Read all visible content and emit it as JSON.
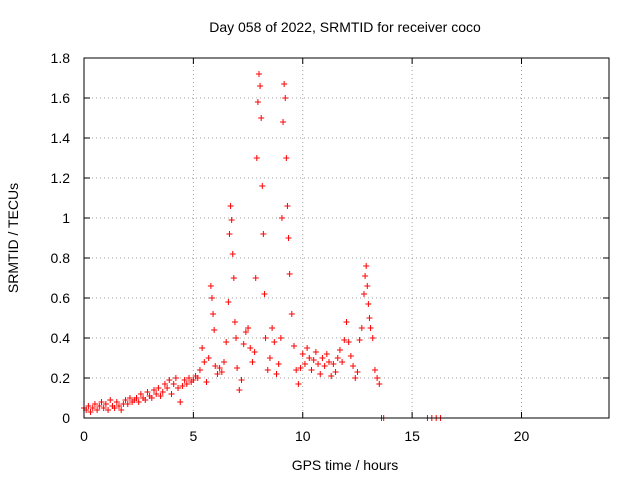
{
  "chart_data": {
    "type": "scatter",
    "title": "Day 058 of 2022, SRMTID for receiver coco",
    "xlabel": "GPS time / hours",
    "ylabel": "SRMTID / TECUs",
    "xlim": [
      0,
      24
    ],
    "ylim": [
      0,
      1.8
    ],
    "xticks": [
      0,
      5,
      10,
      15,
      20
    ],
    "xtick_labels": [
      "0",
      "5",
      "10",
      "15",
      "20"
    ],
    "yticks": [
      0,
      0.2,
      0.4,
      0.6,
      0.8,
      1.0,
      1.2,
      1.4,
      1.6,
      1.8
    ],
    "ytick_labels": [
      "0",
      "0.2",
      "0.4",
      "0.6",
      "0.8",
      "1",
      "1.2",
      "1.4",
      "1.6",
      "1.8"
    ],
    "grid": true,
    "marker": "+",
    "color": "#ff0000",
    "series": [
      {
        "name": "SRMTID",
        "points": [
          [
            0.0,
            0.05
          ],
          [
            0.1,
            0.04
          ],
          [
            0.2,
            0.06
          ],
          [
            0.3,
            0.03
          ],
          [
            0.4,
            0.05
          ],
          [
            0.5,
            0.07
          ],
          [
            0.6,
            0.04
          ],
          [
            0.7,
            0.06
          ],
          [
            0.8,
            0.08
          ],
          [
            0.9,
            0.05
          ],
          [
            1.0,
            0.07
          ],
          [
            1.1,
            0.04
          ],
          [
            1.2,
            0.09
          ],
          [
            1.3,
            0.06
          ],
          [
            1.4,
            0.05
          ],
          [
            1.5,
            0.08
          ],
          [
            1.6,
            0.06
          ],
          [
            1.7,
            0.04
          ],
          [
            1.8,
            0.07
          ],
          [
            1.9,
            0.09
          ],
          [
            2.0,
            0.07
          ],
          [
            2.1,
            0.1
          ],
          [
            2.2,
            0.08
          ],
          [
            2.3,
            0.09
          ],
          [
            2.4,
            0.1
          ],
          [
            2.5,
            0.08
          ],
          [
            2.6,
            0.12
          ],
          [
            2.7,
            0.1
          ],
          [
            2.8,
            0.09
          ],
          [
            2.9,
            0.13
          ],
          [
            3.0,
            0.11
          ],
          [
            3.1,
            0.1
          ],
          [
            3.2,
            0.14
          ],
          [
            3.3,
            0.12
          ],
          [
            3.4,
            0.15
          ],
          [
            3.5,
            0.11
          ],
          [
            3.6,
            0.13
          ],
          [
            3.7,
            0.17
          ],
          [
            3.8,
            0.15
          ],
          [
            3.9,
            0.19
          ],
          [
            4.0,
            0.12
          ],
          [
            4.1,
            0.17
          ],
          [
            4.2,
            0.2
          ],
          [
            4.3,
            0.15
          ],
          [
            4.4,
            0.08
          ],
          [
            4.5,
            0.16
          ],
          [
            4.6,
            0.19
          ],
          [
            4.7,
            0.17
          ],
          [
            4.8,
            0.2
          ],
          [
            4.9,
            0.18
          ],
          [
            5.0,
            0.19
          ],
          [
            5.1,
            0.21
          ],
          [
            5.2,
            0.2
          ],
          [
            5.3,
            0.24
          ],
          [
            5.4,
            0.35
          ],
          [
            5.5,
            0.28
          ],
          [
            5.6,
            0.18
          ],
          [
            5.7,
            0.3
          ],
          [
            5.8,
            0.66
          ],
          [
            5.85,
            0.6
          ],
          [
            5.9,
            0.52
          ],
          [
            5.95,
            0.44
          ],
          [
            6.0,
            0.26
          ],
          [
            6.1,
            0.22
          ],
          [
            6.2,
            0.25
          ],
          [
            6.3,
            0.23
          ],
          [
            6.4,
            0.28
          ],
          [
            6.5,
            0.38
          ],
          [
            6.6,
            0.58
          ],
          [
            6.65,
            0.92
          ],
          [
            6.7,
            1.06
          ],
          [
            6.75,
            0.99
          ],
          [
            6.8,
            0.82
          ],
          [
            6.85,
            0.7
          ],
          [
            6.9,
            0.48
          ],
          [
            6.95,
            0.4
          ],
          [
            7.0,
            0.25
          ],
          [
            7.1,
            0.14
          ],
          [
            7.2,
            0.19
          ],
          [
            7.3,
            0.37
          ],
          [
            7.4,
            0.43
          ],
          [
            7.5,
            0.45
          ],
          [
            7.6,
            0.35
          ],
          [
            7.7,
            0.28
          ],
          [
            7.8,
            0.33
          ],
          [
            7.85,
            0.7
          ],
          [
            7.9,
            1.3
          ],
          [
            7.95,
            1.58
          ],
          [
            8.0,
            1.72
          ],
          [
            8.05,
            1.66
          ],
          [
            8.1,
            1.5
          ],
          [
            8.15,
            1.16
          ],
          [
            8.2,
            0.92
          ],
          [
            8.25,
            0.62
          ],
          [
            8.3,
            0.4
          ],
          [
            8.4,
            0.24
          ],
          [
            8.5,
            0.3
          ],
          [
            8.6,
            0.45
          ],
          [
            8.7,
            0.38
          ],
          [
            8.8,
            0.22
          ],
          [
            8.9,
            0.27
          ],
          [
            9.0,
            0.4
          ],
          [
            9.05,
            1.0
          ],
          [
            9.1,
            1.48
          ],
          [
            9.15,
            1.67
          ],
          [
            9.2,
            1.6
          ],
          [
            9.25,
            1.3
          ],
          [
            9.3,
            1.06
          ],
          [
            9.35,
            0.9
          ],
          [
            9.4,
            0.72
          ],
          [
            9.5,
            0.52
          ],
          [
            9.6,
            0.36
          ],
          [
            9.7,
            0.24
          ],
          [
            9.8,
            0.17
          ],
          [
            9.9,
            0.25
          ],
          [
            10.0,
            0.32
          ],
          [
            10.1,
            0.27
          ],
          [
            10.2,
            0.35
          ],
          [
            10.3,
            0.3
          ],
          [
            10.4,
            0.24
          ],
          [
            10.5,
            0.29
          ],
          [
            10.6,
            0.33
          ],
          [
            10.7,
            0.27
          ],
          [
            10.8,
            0.22
          ],
          [
            10.9,
            0.3
          ],
          [
            11.0,
            0.26
          ],
          [
            11.1,
            0.32
          ],
          [
            11.2,
            0.28
          ],
          [
            11.3,
            0.21
          ],
          [
            11.4,
            0.27
          ],
          [
            11.5,
            0.23
          ],
          [
            11.6,
            0.3
          ],
          [
            11.7,
            0.34
          ],
          [
            11.8,
            0.28
          ],
          [
            11.9,
            0.39
          ],
          [
            12.0,
            0.48
          ],
          [
            12.1,
            0.38
          ],
          [
            12.2,
            0.31
          ],
          [
            12.3,
            0.26
          ],
          [
            12.4,
            0.2
          ],
          [
            12.5,
            0.23
          ],
          [
            12.6,
            0.39
          ],
          [
            12.7,
            0.45
          ],
          [
            12.8,
            0.62
          ],
          [
            12.85,
            0.71
          ],
          [
            12.9,
            0.76
          ],
          [
            12.95,
            0.66
          ],
          [
            13.0,
            0.57
          ],
          [
            13.05,
            0.5
          ],
          [
            13.1,
            0.45
          ],
          [
            13.2,
            0.4
          ],
          [
            13.3,
            0.24
          ],
          [
            13.4,
            0.2
          ],
          [
            13.5,
            0.17
          ],
          [
            13.6,
            0.0
          ],
          [
            13.7,
            0.0
          ],
          [
            15.7,
            0.0
          ],
          [
            15.9,
            0.0
          ],
          [
            16.1,
            0.0
          ],
          [
            16.3,
            0.0
          ]
        ]
      }
    ]
  }
}
